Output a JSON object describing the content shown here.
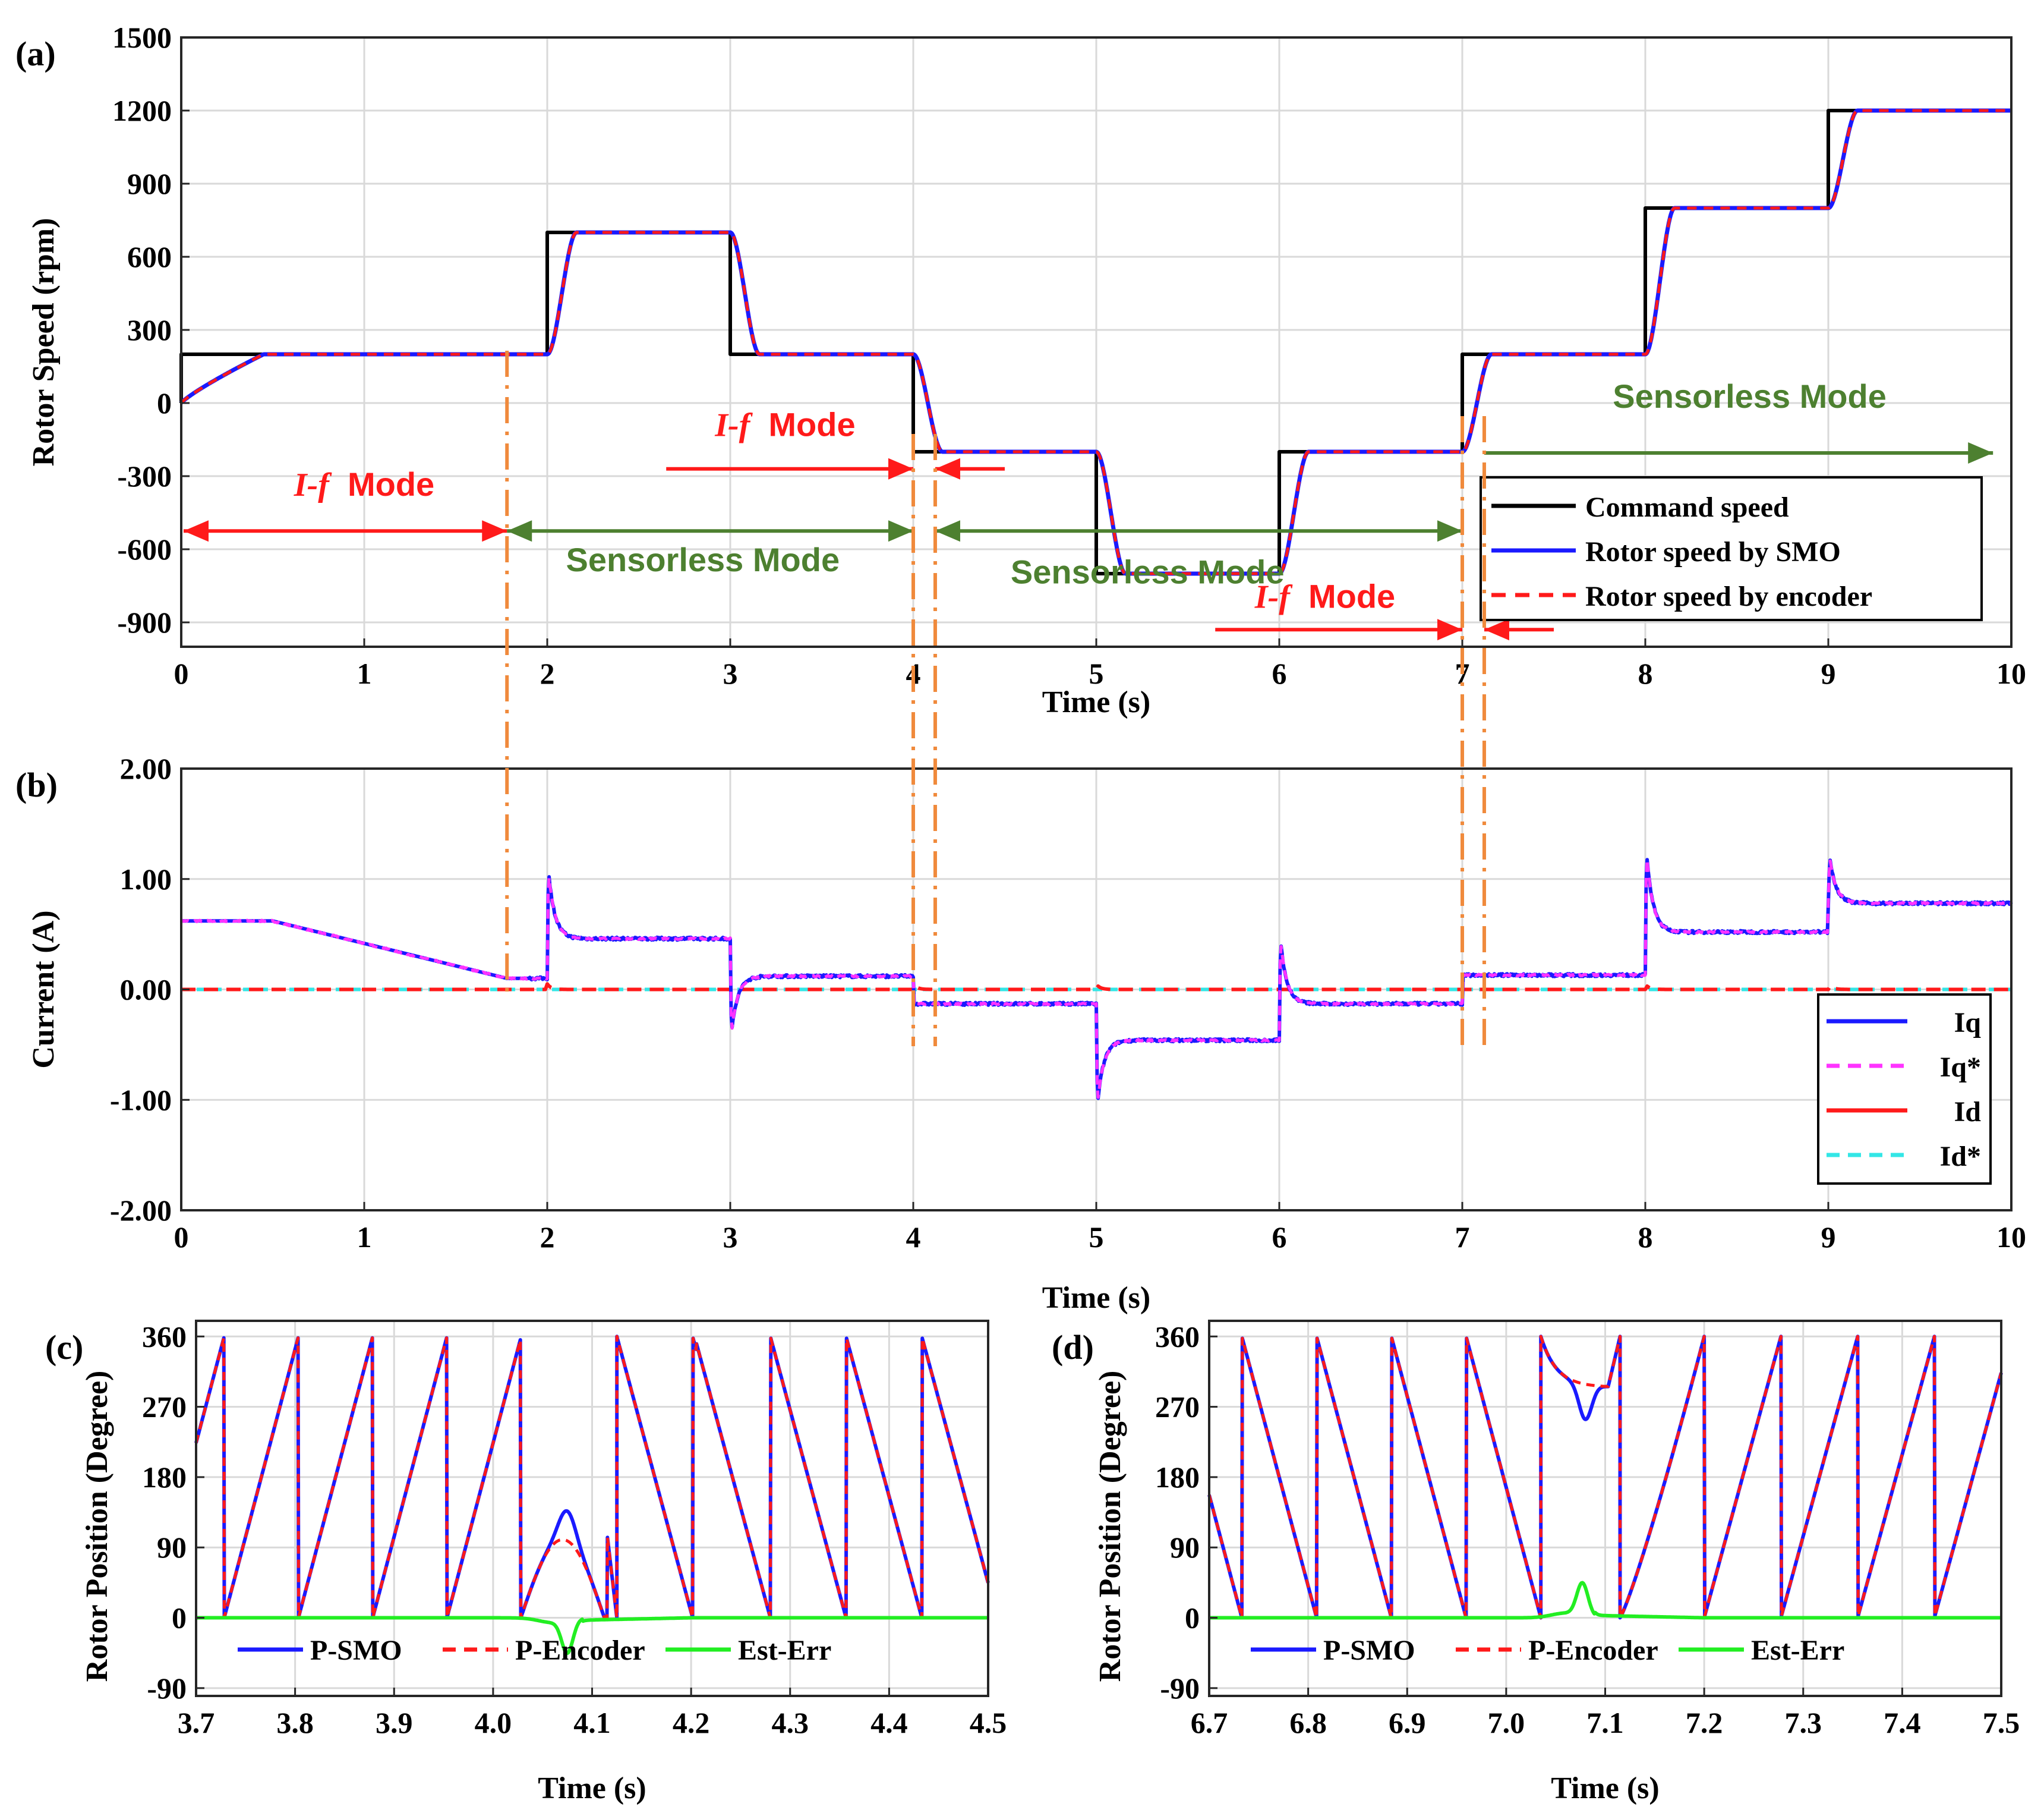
{
  "colors": {
    "command": "#000000",
    "smo": "#1a1aff",
    "encoder": "#ff1a1a",
    "iq": "#1a1aff",
    "iq_ref": "#ff33ff",
    "id": "#ff1a1a",
    "id_ref": "#33e6e6",
    "est_err": "#22ee22",
    "mode_if": "#ff1a1a",
    "mode_sensorless": "#4d8030",
    "transition": "#f08a3c"
  },
  "chart_data": [
    {
      "type": "line",
      "panel_label": "(a)",
      "xlabel": "Time (s)",
      "ylabel": "Rotor Speed (rpm)",
      "xlim": [
        0,
        10
      ],
      "ylim": [
        -1000,
        1500
      ],
      "xticks": [
        0,
        1,
        2,
        3,
        4,
        5,
        6,
        7,
        8,
        9,
        10
      ],
      "yticks": [
        -900,
        -600,
        -300,
        0,
        300,
        600,
        900,
        1200,
        1500
      ],
      "legend_position": "lower-right",
      "command_steps": [
        {
          "t": 0,
          "v": 200
        },
        {
          "t": 2,
          "v": 700
        },
        {
          "t": 3,
          "v": 200
        },
        {
          "t": 4,
          "v": -200
        },
        {
          "t": 5,
          "v": -700
        },
        {
          "t": 6,
          "v": -200
        },
        {
          "t": 7,
          "v": 200
        },
        {
          "t": 8,
          "v": 800
        },
        {
          "t": 9,
          "v": 1200
        }
      ],
      "series": [
        {
          "name": "Command speed",
          "key": "command"
        },
        {
          "name": "Rotor speed by SMO",
          "key": "smo"
        },
        {
          "name": "Rotor speed by encoder",
          "key": "encoder"
        }
      ],
      "annotations": {
        "if_mode_1": {
          "text_italic": "I-f",
          "text": "Mode",
          "t_start": 0,
          "t_end": 1.78
        },
        "if_mode_2": {
          "text_italic": "I-f",
          "text": "Mode",
          "t_start": 4.0,
          "t_end": 4.12
        },
        "if_mode_3": {
          "text_italic": "I-f",
          "text": "Mode",
          "t_start": 7.0,
          "t_end": 7.12
        },
        "sensorless_1": {
          "text": "Sensorless Mode",
          "t_start": 1.78,
          "t_end": 4.0
        },
        "sensorless_2": {
          "text": "Sensorless Mode",
          "t_start": 4.12,
          "t_end": 7.0
        },
        "sensorless_3": {
          "text": "Sensorless Mode",
          "t_start": 7.12,
          "t_end": 9.9
        }
      }
    },
    {
      "type": "line",
      "panel_label": "(b)",
      "xlabel": "Time (s)",
      "ylabel": "Current (A)",
      "xlim": [
        0,
        10
      ],
      "ylim": [
        -2,
        2
      ],
      "xticks": [
        0,
        1,
        2,
        3,
        4,
        5,
        6,
        7,
        8,
        9,
        10
      ],
      "yticks": [
        "-2.00",
        "-1.00",
        "0.00",
        "1.00",
        "2.00"
      ],
      "legend_position": "lower-right",
      "iq_levels": [
        {
          "t": 0,
          "v": 0.62
        },
        {
          "t": 0.5,
          "v": 0.62
        },
        {
          "t": 1.78,
          "v": 0.1
        },
        {
          "t": 2,
          "v": 0.46
        },
        {
          "t": 3,
          "v": 0.12
        },
        {
          "t": 4,
          "v": -0.13
        },
        {
          "t": 5,
          "v": -0.46
        },
        {
          "t": 6,
          "v": -0.13
        },
        {
          "t": 7,
          "v": 0.13
        },
        {
          "t": 8,
          "v": 0.52
        },
        {
          "t": 9,
          "v": 0.78
        }
      ],
      "iq_spikes": [
        {
          "t": 2,
          "peak": 1.2
        },
        {
          "t": 3,
          "peak": -0.5
        },
        {
          "t": 5,
          "peak": -1.15
        },
        {
          "t": 6,
          "peak": 0.56
        },
        {
          "t": 8,
          "peak": 1.4
        },
        {
          "t": 9,
          "peak": 1.3
        }
      ],
      "series": [
        {
          "name": "Iq",
          "key": "iq"
        },
        {
          "name": "Iq*",
          "key": "iq_ref"
        },
        {
          "name": "Id",
          "key": "id"
        },
        {
          "name": "Id*",
          "key": "id_ref"
        }
      ]
    },
    {
      "type": "line",
      "panel_label": "(c)",
      "xlabel": "Time (s)",
      "ylabel": "Rotor Position (Degree)",
      "xlim": [
        3.7,
        4.5
      ],
      "ylim": [
        -100,
        380
      ],
      "xticks": [
        "3.7",
        "3.8",
        "3.9",
        "4.0",
        "4.1",
        "4.2",
        "4.3",
        "4.4",
        "4.5"
      ],
      "yticks": [
        -90,
        0,
        90,
        180,
        270,
        360
      ],
      "legend_position": "bottom",
      "series": [
        {
          "name": "P-SMO",
          "key": "smo"
        },
        {
          "name": "P-Encoder",
          "key": "encoder"
        },
        {
          "name": "Est-Err",
          "key": "est_err"
        }
      ]
    },
    {
      "type": "line",
      "panel_label": "(d)",
      "xlabel": "Time (s)",
      "ylabel": "Rotor Position (Degree)",
      "xlim": [
        6.7,
        7.5
      ],
      "ylim": [
        -100,
        380
      ],
      "xticks": [
        "6.7",
        "6.8",
        "6.9",
        "7.0",
        "7.1",
        "7.2",
        "7.3",
        "7.4",
        "7.5"
      ],
      "yticks": [
        -90,
        0,
        90,
        180,
        270,
        360
      ],
      "legend_position": "bottom",
      "series": [
        {
          "name": "P-SMO",
          "key": "smo"
        },
        {
          "name": "P-Encoder",
          "key": "encoder"
        },
        {
          "name": "Est-Err",
          "key": "est_err"
        }
      ]
    }
  ]
}
